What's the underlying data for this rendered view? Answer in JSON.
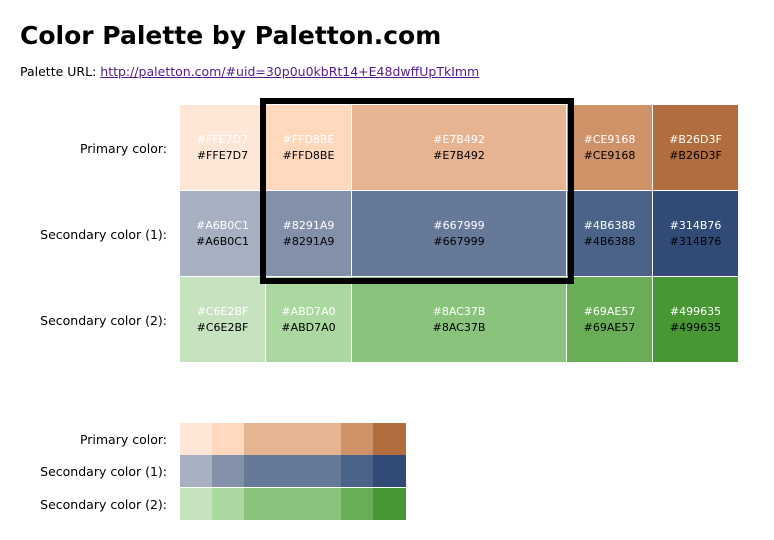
{
  "page": {
    "title": "Color Palette by Paletton.com",
    "url_label": "Palette URL:",
    "url": "http://paletton.com/#uid=30p0u0kbRt14+E48dwffUpTkImm"
  },
  "rows": [
    {
      "label": "Primary color:",
      "swatches": [
        {
          "hex": "#FFE7D7"
        },
        {
          "hex": "#FFD8BE"
        },
        {
          "hex": "#E7B492"
        },
        {
          "hex": "#CE9168"
        },
        {
          "hex": "#B26D3F"
        }
      ]
    },
    {
      "label": "Secondary color (1):",
      "swatches": [
        {
          "hex": "#A6B0C1"
        },
        {
          "hex": "#8291A9"
        },
        {
          "hex": "#667999"
        },
        {
          "hex": "#4B6388"
        },
        {
          "hex": "#314B76"
        }
      ]
    },
    {
      "label": "Secondary color (2):",
      "swatches": [
        {
          "hex": "#C6E2BF"
        },
        {
          "hex": "#ABD7A0"
        },
        {
          "hex": "#8AC37B"
        },
        {
          "hex": "#69AE57"
        },
        {
          "hex": "#499635"
        }
      ]
    }
  ],
  "colors": {
    "link": "#551a8b",
    "highlight_border": "#000000"
  }
}
